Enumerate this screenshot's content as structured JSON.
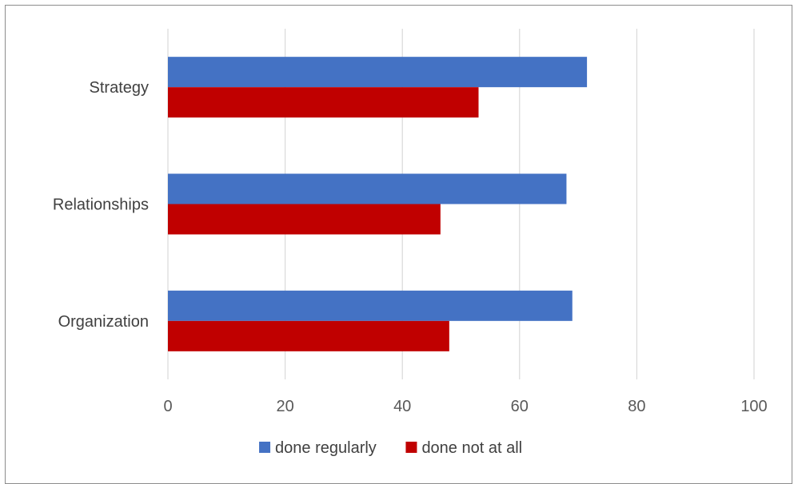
{
  "chart_data": {
    "type": "bar",
    "orientation": "horizontal",
    "categories": [
      "Strategy",
      "Relationships",
      "Organization"
    ],
    "series": [
      {
        "name": "done regularly",
        "color": "#4472c4",
        "values": [
          71.5,
          68,
          69
        ]
      },
      {
        "name": "done not at all",
        "color": "#c00000",
        "values": [
          53,
          46.5,
          48
        ]
      }
    ],
    "xlim": [
      0,
      100
    ],
    "xticks": [
      0,
      20,
      40,
      60,
      80,
      100
    ],
    "xlabel": "",
    "ylabel": "",
    "title": "",
    "grid": true,
    "legend_position": "bottom"
  }
}
